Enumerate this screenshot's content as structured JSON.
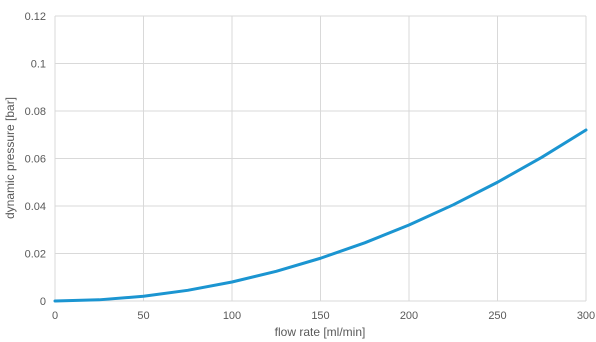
{
  "chart_data": {
    "type": "line",
    "xlabel": "flow rate [ml/min]",
    "ylabel": "dynamic pressure [bar]",
    "xlim": [
      0,
      300
    ],
    "ylim": [
      0,
      0.12
    ],
    "x_ticks": [
      0,
      50,
      100,
      150,
      200,
      250,
      300
    ],
    "y_ticks": [
      0,
      0.02,
      0.04,
      0.06,
      0.08,
      0.1,
      0.12
    ],
    "x_tick_labels": [
      "0",
      "50",
      "100",
      "150",
      "200",
      "250",
      "300"
    ],
    "y_tick_labels": [
      "0",
      "0.02",
      "0.04",
      "0.06",
      "0.08",
      "0.1",
      "0.12"
    ],
    "grid": true,
    "legend": "none",
    "series": [
      {
        "color": "#1b95d1",
        "x": [
          0,
          25,
          50,
          75,
          100,
          125,
          150,
          175,
          200,
          225,
          250,
          275,
          300
        ],
        "y": [
          0,
          0.0005,
          0.002,
          0.0045,
          0.008,
          0.0125,
          0.018,
          0.0245,
          0.032,
          0.0405,
          0.05,
          0.0605,
          0.072
        ]
      }
    ]
  }
}
